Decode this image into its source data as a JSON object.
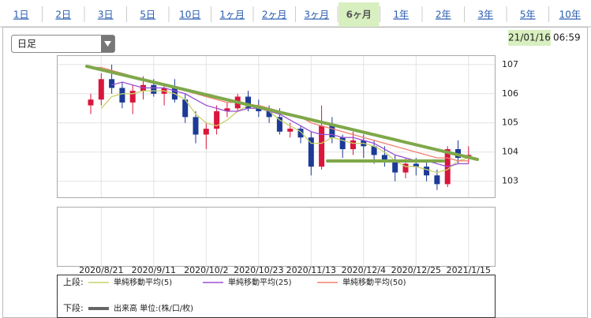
{
  "tabs": [
    {
      "label": "1日"
    },
    {
      "label": "2日"
    },
    {
      "label": "3日"
    },
    {
      "label": "5日"
    },
    {
      "label": "10日"
    },
    {
      "label": "1ヶ月"
    },
    {
      "label": "2ヶ月"
    },
    {
      "label": "3ヶ月"
    },
    {
      "label": "6ヶ月",
      "active": true
    },
    {
      "label": "1年"
    },
    {
      "label": "2年"
    },
    {
      "label": "3年"
    },
    {
      "label": "5年"
    },
    {
      "label": "10年"
    }
  ],
  "dropdown": "日足",
  "date": "21/01/16",
  "time": "06:59",
  "chart_data": {
    "type": "candlestick",
    "categories": [
      null,
      "2020/8/21",
      null,
      null,
      null,
      null,
      "2020/9/11",
      null,
      null,
      null,
      null,
      "2020/10/2",
      null,
      null,
      null,
      null,
      "2020/10/23",
      null,
      null,
      null,
      null,
      "2020/11/13",
      null,
      null,
      null,
      null,
      "2020/12/4",
      null,
      null,
      null,
      null,
      "2020/12/25",
      null,
      null,
      null,
      null,
      "2021/1/15"
    ],
    "open": [
      105.6,
      105.8,
      106.5,
      106.2,
      105.7,
      106.1,
      106.3,
      106.0,
      106.2,
      105.8,
      105.2,
      104.6,
      104.8,
      105.4,
      105.5,
      105.9,
      105.5,
      105.4,
      105.2,
      104.7,
      104.8,
      104.5,
      103.5,
      104.9,
      104.5,
      104.1,
      104.4,
      104.2,
      103.9,
      103.7,
      103.3,
      103.6,
      103.5,
      103.2,
      102.9,
      104.1,
      103.8
    ],
    "high": [
      106.0,
      106.7,
      107.0,
      106.4,
      106.3,
      106.6,
      106.5,
      106.3,
      106.5,
      106.0,
      105.4,
      105.0,
      105.6,
      105.7,
      106.0,
      106.1,
      105.8,
      105.6,
      105.5,
      105.0,
      104.9,
      104.7,
      105.6,
      105.2,
      104.6,
      104.7,
      104.6,
      104.4,
      104.2,
      103.9,
      103.8,
      103.8,
      103.7,
      103.4,
      104.2,
      104.4,
      104.2
    ],
    "low": [
      105.3,
      105.6,
      106.0,
      105.5,
      105.3,
      105.8,
      105.9,
      105.6,
      105.7,
      105.0,
      104.3,
      104.1,
      104.6,
      105.2,
      105.4,
      105.4,
      105.2,
      105.0,
      104.6,
      104.5,
      104.3,
      103.2,
      103.4,
      104.3,
      103.8,
      103.9,
      103.8,
      103.6,
      103.5,
      103.0,
      103.1,
      103.2,
      103.0,
      102.7,
      102.8,
      103.6,
      103.6
    ],
    "close": [
      105.8,
      106.5,
      106.2,
      105.7,
      106.1,
      106.3,
      106.0,
      106.2,
      105.8,
      105.2,
      104.6,
      104.8,
      105.4,
      105.5,
      105.9,
      105.5,
      105.4,
      105.2,
      104.7,
      104.8,
      104.5,
      103.5,
      104.9,
      104.5,
      104.1,
      104.4,
      104.2,
      103.9,
      103.7,
      103.3,
      103.6,
      103.5,
      103.2,
      102.9,
      104.1,
      103.8,
      103.9
    ],
    "up_color": "#d9163c",
    "down_color": "#1c3a96",
    "ma": [
      {
        "name": "単純移動平均(5)",
        "color": "#c8d26a",
        "values": [
          null,
          105.5,
          105.9,
          106.0,
          106.0,
          106.1,
          106.1,
          106.1,
          106.0,
          105.8,
          105.3,
          105.0,
          104.9,
          105.1,
          105.4,
          105.6,
          105.6,
          105.4,
          105.1,
          104.9,
          104.7,
          104.3,
          104.3,
          104.5,
          104.4,
          104.3,
          104.3,
          104.2,
          104.0,
          103.7,
          103.5,
          103.5,
          103.4,
          103.3,
          103.4,
          103.7,
          103.8
        ]
      },
      {
        "name": "単純移動平均(25)",
        "color": "#9b4fd4",
        "values": [
          null,
          null,
          106.3,
          106.4,
          106.3,
          106.2,
          106.2,
          106.2,
          106.1,
          106.0,
          105.8,
          105.6,
          105.5,
          105.4,
          105.4,
          105.5,
          105.5,
          105.4,
          105.3,
          105.1,
          104.9,
          104.7,
          104.6,
          104.6,
          104.5,
          104.5,
          104.4,
          104.3,
          104.1,
          103.9,
          103.8,
          103.7,
          103.7,
          103.6,
          103.5,
          103.6,
          103.6
        ]
      },
      {
        "name": "単純移動平均(50)",
        "color": "#f08070",
        "values": [
          106.9,
          106.9,
          106.8,
          106.7,
          106.6,
          106.5,
          106.4,
          106.3,
          106.2,
          106.1,
          106.0,
          105.9,
          105.8,
          105.7,
          105.7,
          105.6,
          105.6,
          105.5,
          105.4,
          105.3,
          105.2,
          105.0,
          104.9,
          104.8,
          104.7,
          104.6,
          104.5,
          104.4,
          104.3,
          104.2,
          104.1,
          104.0,
          103.9,
          103.8,
          103.8,
          103.7,
          103.7
        ]
      }
    ],
    "ylim": [
      102.45,
      107.32
    ],
    "yticks": [
      103,
      104,
      105,
      106,
      107
    ],
    "grid": true,
    "upper_label": "上段:",
    "lower_label": "下段:",
    "lower_series": {
      "name": "出来高 単位:(株/口/枚)",
      "color": "#666666"
    }
  }
}
